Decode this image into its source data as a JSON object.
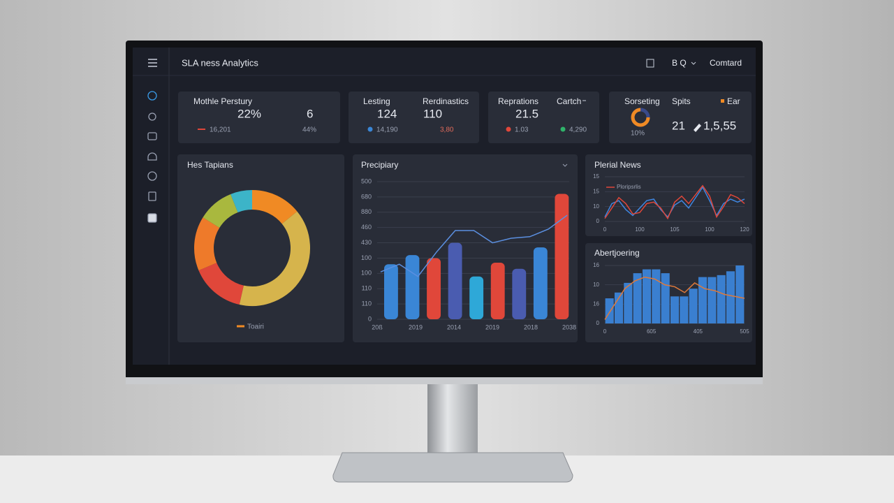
{
  "header": {
    "title": "SLA ness Analytics",
    "menu": [
      "B Q",
      "Comtard"
    ]
  },
  "kpis": [
    {
      "label": "Mothle Perstury",
      "value": "22%",
      "value2": "6",
      "sub": "16,201",
      "sub2": "44%"
    },
    {
      "label": "Lesting",
      "value": "124",
      "label2": "Rerdinastics",
      "value2": "110",
      "sub": "14,190",
      "sub2": "3,80"
    },
    {
      "label": "Reprations",
      "value": "21.5",
      "label2": "Cartch",
      "sub": "1.03",
      "sub2": "4,290"
    },
    {
      "label": "Sorseting",
      "value": "10%",
      "label2": "Spits",
      "value2": "21",
      "sub": "1,5,55",
      "legend": "Ear"
    }
  ],
  "donut": {
    "title": "Hes Tapians",
    "legend": "Toairi",
    "values": [
      14,
      39,
      15,
      15,
      10,
      6
    ],
    "colors": [
      "#f08a24",
      "#d6b44c",
      "#e0473a",
      "#ee7a2a",
      "#a9b83e",
      "#3cb4c8"
    ]
  },
  "bar_chart": {
    "title": "Precipiary",
    "ylim": [
      0,
      9
    ],
    "yticks": [
      {
        "value": 0,
        "label": "0"
      },
      {
        "value": 1,
        "label": "110"
      },
      {
        "value": 2,
        "label": "110"
      },
      {
        "value": 3,
        "label": "100"
      },
      {
        "value": 4,
        "label": "100"
      },
      {
        "value": 5,
        "label": "430"
      },
      {
        "value": 6,
        "label": "460"
      },
      {
        "value": 7,
        "label": "880"
      },
      {
        "value": 8,
        "label": "680"
      },
      {
        "value": 9,
        "label": "500"
      }
    ],
    "xtick_labels": [
      "20ß",
      "2019",
      "2014",
      "2019",
      "2018",
      "2038"
    ],
    "bars": [
      3.6,
      4.2,
      4.0,
      5.0,
      2.8,
      3.7,
      3.3,
      4.7,
      8.2
    ],
    "bar_colors": [
      "#3a86d6",
      "#3a86d6",
      "#e0473a",
      "#4a5cb0",
      "#2ea8d8",
      "#e0473a",
      "#4a5cb0",
      "#3a86d6",
      "#e0473a"
    ],
    "line": [
      3.1,
      3.6,
      2.8,
      4.4,
      5.8,
      5.8,
      5.0,
      5.3,
      5.4,
      5.9,
      6.8
    ],
    "line_color": "#5b8fe0"
  },
  "news_chart": {
    "title": "Plerial News",
    "legend": "Ploripsrlis",
    "ylim": [
      0,
      3
    ],
    "yticks": [
      {
        "value": 0,
        "label": "0"
      },
      {
        "value": 1,
        "label": "10"
      },
      {
        "value": 2,
        "label": "15"
      },
      {
        "value": 3,
        "label": "15"
      }
    ],
    "xtick_labels": [
      "0",
      "100",
      "105",
      "100",
      "120"
    ],
    "series": [
      {
        "color": "#3f86e0",
        "values": [
          0.3,
          1.2,
          1.4,
          0.8,
          0.4,
          0.9,
          1.4,
          1.5,
          0.8,
          0.3,
          1.1,
          1.4,
          0.9,
          1.6,
          2.3,
          1.4,
          0.4,
          1.2,
          1.5,
          1.3,
          1.5
        ]
      },
      {
        "color": "#e0473a",
        "values": [
          0.2,
          0.9,
          1.6,
          1.2,
          0.5,
          0.6,
          1.2,
          1.3,
          0.9,
          0.2,
          1.3,
          1.7,
          1.2,
          1.8,
          2.4,
          1.7,
          0.3,
          1.0,
          1.8,
          1.6,
          1.2
        ]
      }
    ]
  },
  "abert_chart": {
    "title": "Abertjoering",
    "ylim": [
      0,
      3
    ],
    "yticks": [
      {
        "value": 0,
        "label": "0"
      },
      {
        "value": 1,
        "label": "16"
      },
      {
        "value": 2,
        "label": "10"
      },
      {
        "value": 3,
        "label": "16"
      }
    ],
    "xtick_labels": [
      "0",
      "605",
      "405",
      "505"
    ],
    "bars": [
      1.3,
      1.6,
      2.1,
      2.6,
      2.8,
      2.8,
      2.6,
      1.4,
      1.4,
      1.8,
      2.4,
      2.4,
      2.5,
      2.7,
      3.0
    ],
    "bar_color": "#3a7fd0",
    "line": [
      0.2,
      1.0,
      1.8,
      2.2,
      2.4,
      2.3,
      2.0,
      1.9,
      1.6,
      2.1,
      1.8,
      1.7,
      1.5,
      1.4,
      1.3
    ],
    "line_color": "#e07a3a"
  }
}
